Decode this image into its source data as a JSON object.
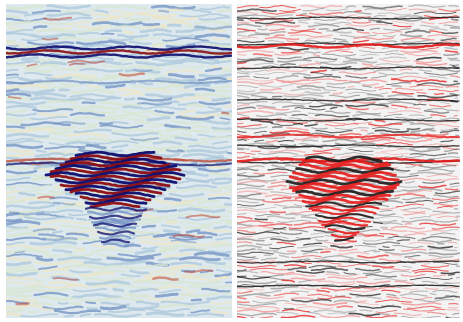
{
  "figure": {
    "panels": [
      {
        "name": "left-seismic-section",
        "colormap": "seismic-blue-white-red",
        "colors": {
          "background": "#dde9ee",
          "negative": "#0b0b6e",
          "mid_blue": "#6f8fc2",
          "light_blue": "#a9c5da",
          "pale_green": "#d8e6cf",
          "pale_yellow": "#ece6c6",
          "positive": "#8b0c12",
          "mid_red": "#c0442f"
        }
      },
      {
        "name": "right-seismic-section",
        "colormap": "gray-white-red",
        "colors": {
          "background": "#f3f3f3",
          "negative": "#1a1a1a",
          "gray": "#8a8a8a",
          "positive": "#e61a1a",
          "light_red": "#f08a8a"
        }
      }
    ]
  }
}
